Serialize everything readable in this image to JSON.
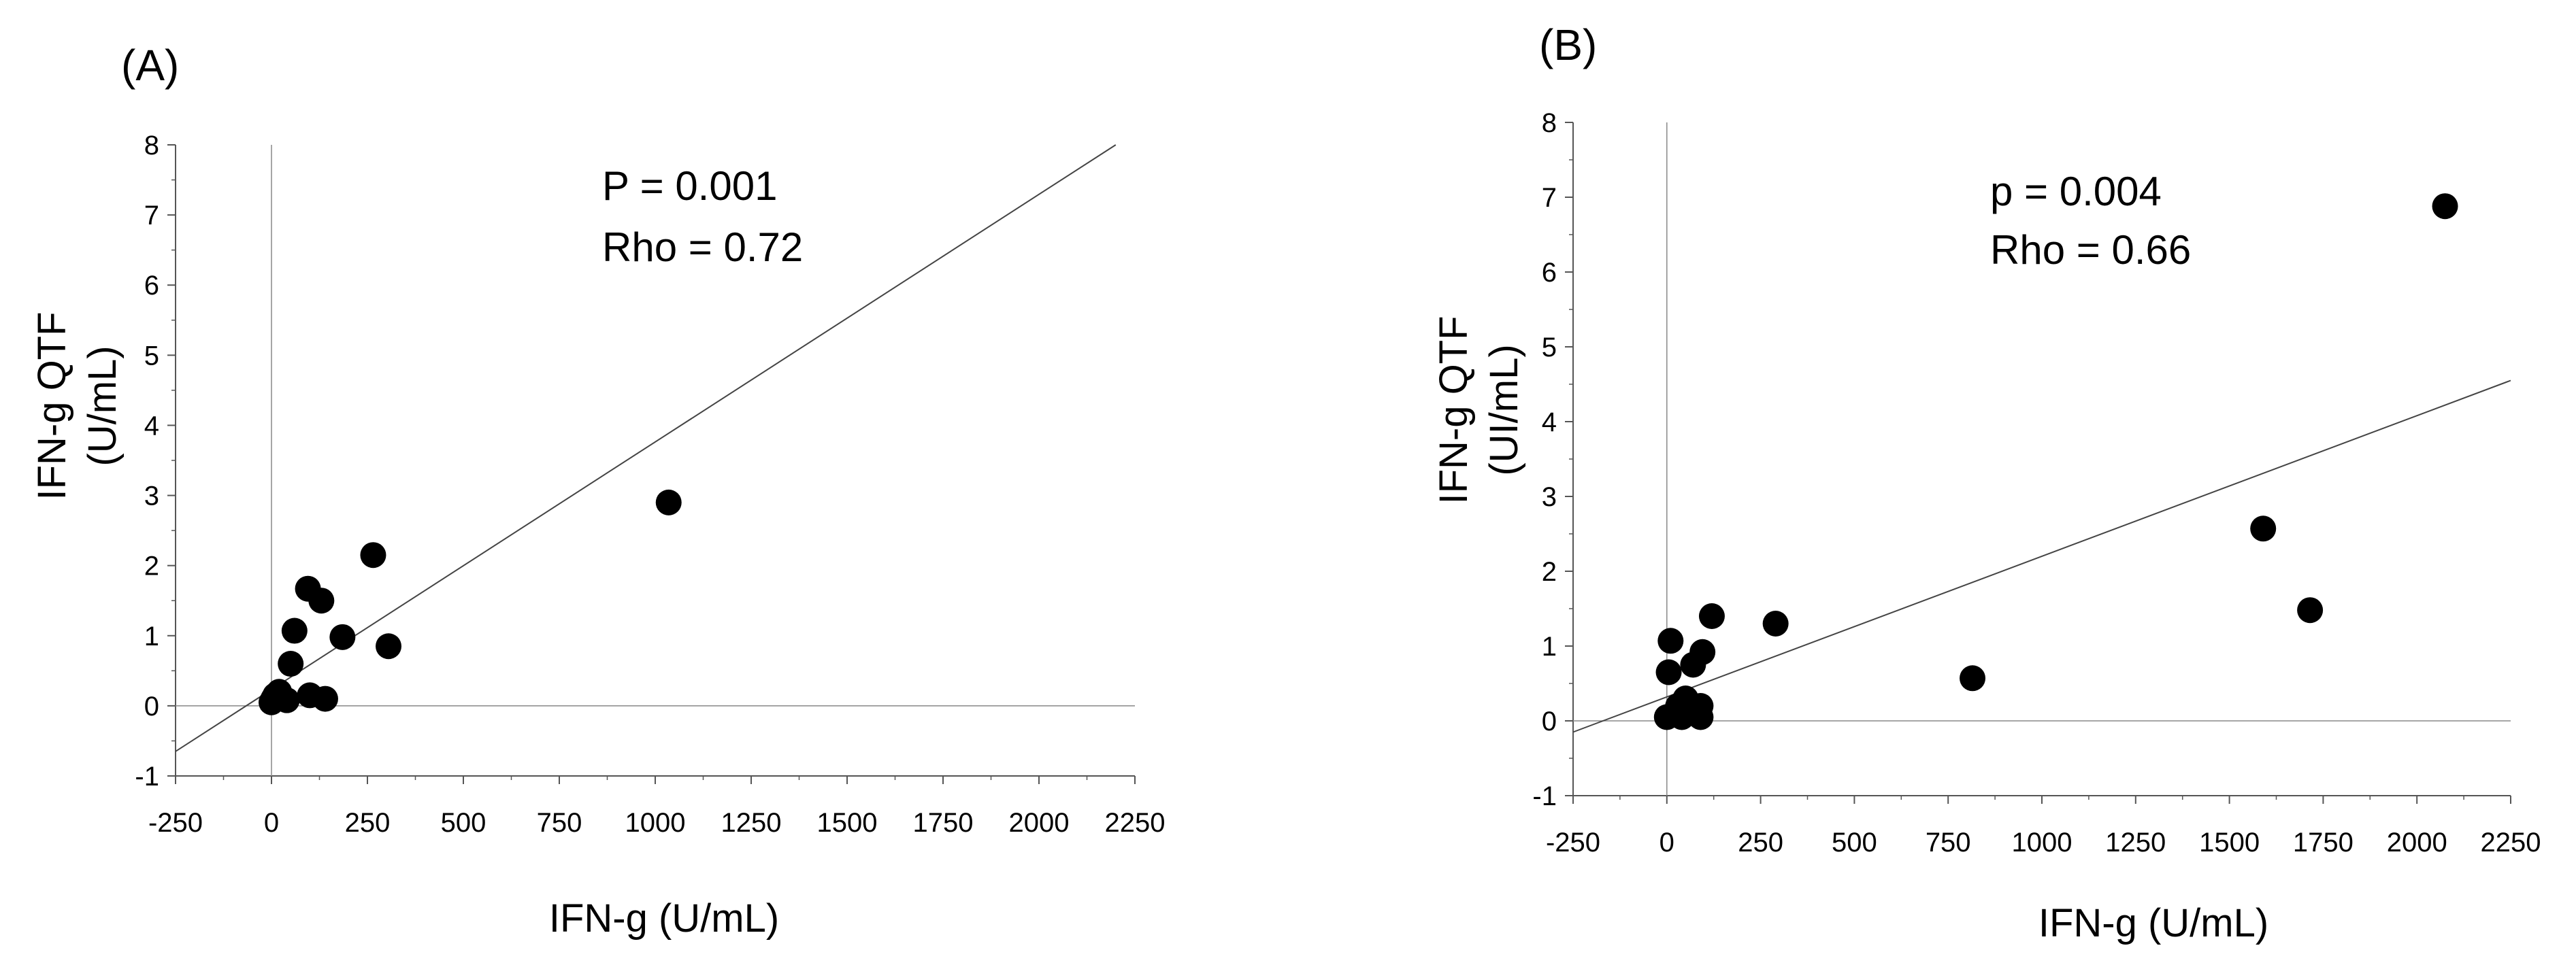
{
  "chart_data": [
    {
      "type": "scatter",
      "panel_label": "(A)",
      "xlabel": "IFN-g (U/mL)",
      "ylabel_lines": [
        "IFN-g QTF",
        "(U/mL)"
      ],
      "xlim": [
        -250,
        2250
      ],
      "ylim": [
        -1,
        8
      ],
      "xticks": [
        "-250",
        "0",
        "250",
        "500",
        "750",
        "1000",
        "1250",
        "1500",
        "1750",
        "2000",
        "2250"
      ],
      "yticks": [
        "-1",
        "0",
        "1",
        "2",
        "3",
        "4",
        "5",
        "6",
        "7",
        "8"
      ],
      "annotation_lines": [
        "P = 0.001",
        "Rho = 0.72"
      ],
      "fit_line": [
        [
          -250,
          -0.65
        ],
        [
          2200,
          8.0
        ]
      ],
      "points": [
        [
          0,
          0.05
        ],
        [
          5,
          0.1
        ],
        [
          10,
          0.15
        ],
        [
          20,
          0.2
        ],
        [
          40,
          0.08
        ],
        [
          50,
          0.6
        ],
        [
          60,
          1.07
        ],
        [
          95,
          1.67
        ],
        [
          100,
          0.15
        ],
        [
          130,
          1.5
        ],
        [
          140,
          0.1
        ],
        [
          185,
          0.98
        ],
        [
          265,
          2.15
        ],
        [
          305,
          0.85
        ],
        [
          1035,
          2.9
        ]
      ]
    },
    {
      "type": "scatter",
      "panel_label": "(B)",
      "xlabel": "IFN-g (U/mL)",
      "ylabel_lines": [
        "IFN-g QTF",
        "(UI/mL)"
      ],
      "xlim": [
        -250,
        2250
      ],
      "ylim": [
        -1,
        8
      ],
      "xticks": [
        "-250",
        "0",
        "250",
        "500",
        "750",
        "1000",
        "1250",
        "1500",
        "1750",
        "2000",
        "2250"
      ],
      "yticks": [
        "-1",
        "0",
        "1",
        "2",
        "3",
        "4",
        "5",
        "6",
        "7",
        "8"
      ],
      "annotation_lines": [
        "p = 0.004",
        "Rho = 0.66"
      ],
      "fit_line": [
        [
          -250,
          -0.15
        ],
        [
          2250,
          4.55
        ]
      ],
      "points": [
        [
          0,
          0.05
        ],
        [
          5,
          0.65
        ],
        [
          10,
          1.07
        ],
        [
          20,
          0.1
        ],
        [
          30,
          0.2
        ],
        [
          40,
          0.05
        ],
        [
          50,
          0.3
        ],
        [
          70,
          0.75
        ],
        [
          90,
          0.2
        ],
        [
          90,
          0.05
        ],
        [
          95,
          0.92
        ],
        [
          120,
          1.4
        ],
        [
          290,
          1.3
        ],
        [
          815,
          0.57
        ],
        [
          1590,
          2.57
        ],
        [
          1715,
          1.48
        ],
        [
          2075,
          6.88
        ]
      ]
    }
  ]
}
